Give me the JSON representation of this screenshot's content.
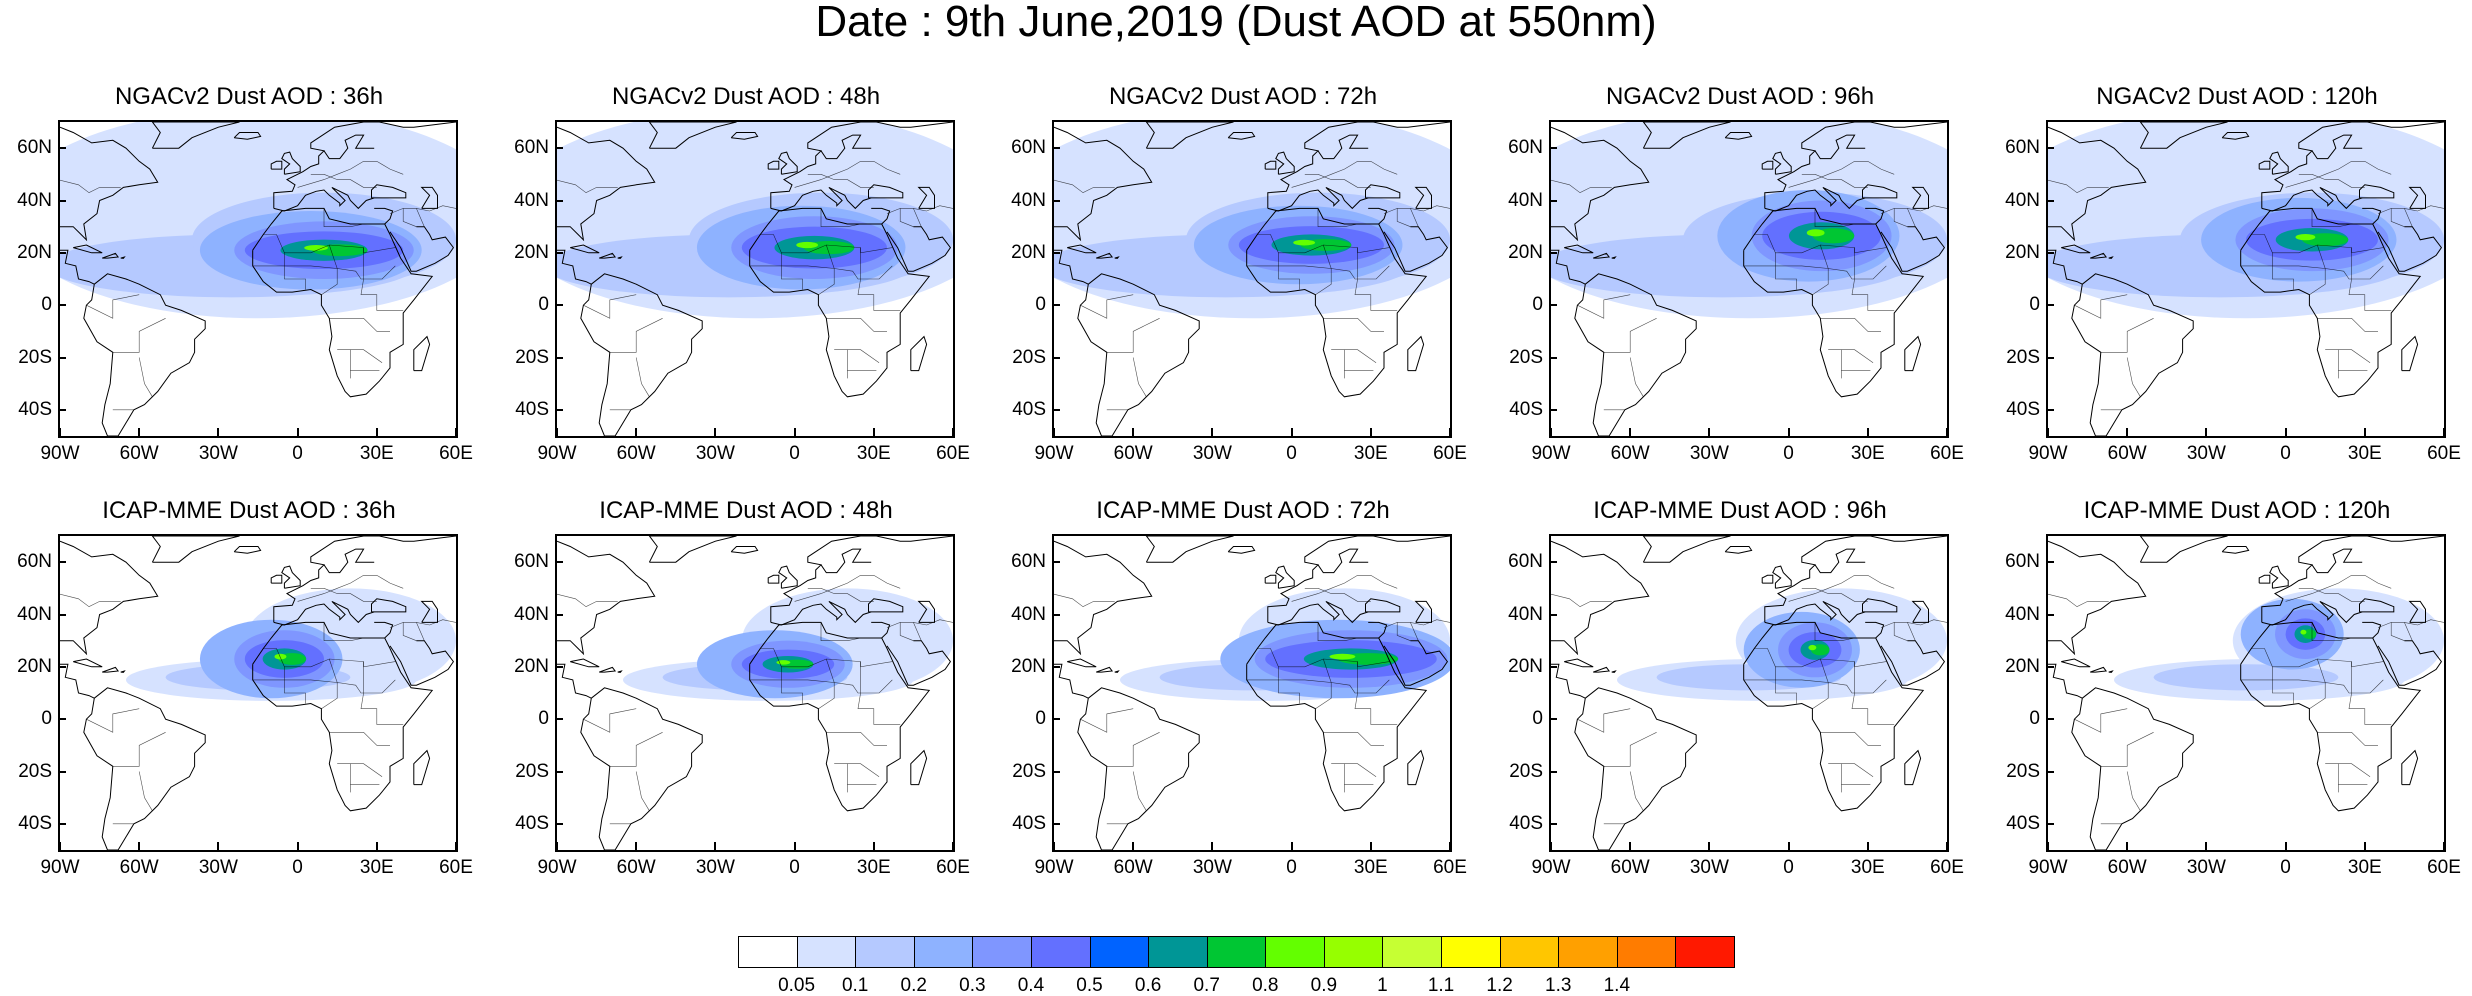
{
  "figure": {
    "title": "Date : 9th June,2019 (Dust AOD at 550nm)"
  },
  "chart_data": {
    "type": "heatmap",
    "variable": "Dust AOD at 550nm",
    "map_extent": {
      "lon": [
        -90,
        60
      ],
      "lat": [
        -50,
        70
      ]
    },
    "lat_ticks": [
      "60N",
      "40N",
      "20N",
      "0",
      "20S",
      "40S"
    ],
    "lat_tick_values": [
      60,
      40,
      20,
      0,
      -20,
      -40
    ],
    "lon_ticks": [
      "90W",
      "60W",
      "30W",
      "0",
      "30E",
      "60E"
    ],
    "lon_tick_values": [
      -90,
      -60,
      -30,
      0,
      30,
      60
    ],
    "panels": [
      {
        "title": "NGACv2 Dust AOD : 36h",
        "model": "NGACv2",
        "forecast_hour": 36,
        "dust_core": {
          "lon": [
            -20,
            40
          ],
          "lat": [
            12,
            30
          ],
          "max_level": "0.8-0.9"
        }
      },
      {
        "title": "NGACv2 Dust AOD : 48h",
        "model": "NGACv2",
        "forecast_hour": 48,
        "dust_core": {
          "lon": [
            -20,
            35
          ],
          "lat": [
            12,
            32
          ],
          "max_level": "0.8-0.9"
        }
      },
      {
        "title": "NGACv2 Dust AOD : 72h",
        "model": "NGACv2",
        "forecast_hour": 72,
        "dust_core": {
          "lon": [
            -20,
            35
          ],
          "lat": [
            14,
            32
          ],
          "max_level": "0.8-0.9"
        }
      },
      {
        "title": "NGACv2 Dust AOD : 96h",
        "model": "NGACv2",
        "forecast_hour": 96,
        "dust_core": {
          "lon": [
            -10,
            35
          ],
          "lat": [
            15,
            38
          ],
          "max_level": "0.8-0.9"
        }
      },
      {
        "title": "NGACv2 Dust AOD : 120h",
        "model": "NGACv2",
        "forecast_hour": 120,
        "dust_core": {
          "lon": [
            -15,
            35
          ],
          "lat": [
            15,
            35
          ],
          "max_level": "0.8-0.9"
        }
      },
      {
        "title": "ICAP-MME Dust AOD : 36h",
        "model": "ICAP-MME",
        "forecast_hour": 36,
        "dust_core": {
          "lon": [
            -20,
            10
          ],
          "lat": [
            14,
            32
          ],
          "max_level": "0.8-0.9"
        }
      },
      {
        "title": "ICAP-MME Dust AOD : 48h",
        "model": "ICAP-MME",
        "forecast_hour": 48,
        "dust_core": {
          "lon": [
            -20,
            15
          ],
          "lat": [
            14,
            28
          ],
          "max_level": "0.7-0.8"
        }
      },
      {
        "title": "ICAP-MME Dust AOD : 72h",
        "model": "ICAP-MME",
        "forecast_hour": 72,
        "dust_core": {
          "lon": [
            -10,
            55
          ],
          "lat": [
            14,
            32
          ],
          "max_level": "0.7-0.8"
        }
      },
      {
        "title": "ICAP-MME Dust AOD : 96h",
        "model": "ICAP-MME",
        "forecast_hour": 96,
        "dust_core": {
          "lon": [
            0,
            20
          ],
          "lat": [
            18,
            35
          ],
          "max_level": "0.7-0.8"
        }
      },
      {
        "title": "ICAP-MME Dust AOD : 120h",
        "model": "ICAP-MME",
        "forecast_hour": 120,
        "dust_core": {
          "lon": [
            0,
            15
          ],
          "lat": [
            25,
            40
          ],
          "max_level": "0.8-0.9"
        }
      }
    ],
    "colorbar": {
      "labels": [
        "0.05",
        "0.1",
        "0.2",
        "0.3",
        "0.4",
        "0.5",
        "0.6",
        "0.7",
        "0.8",
        "0.9",
        "1",
        "1.1",
        "1.2",
        "1.3",
        "1.4"
      ],
      "colors": [
        "#ffffff",
        "#d6e2ff",
        "#b5c9ff",
        "#8eb2ff",
        "#7f96ff",
        "#6370ff",
        "#0063ff",
        "#009696",
        "#00c633",
        "#63ff00",
        "#96ff00",
        "#c6ff33",
        "#ffff00",
        "#ffc600",
        "#ffa000",
        "#ff7c00",
        "#ff1900"
      ]
    }
  }
}
